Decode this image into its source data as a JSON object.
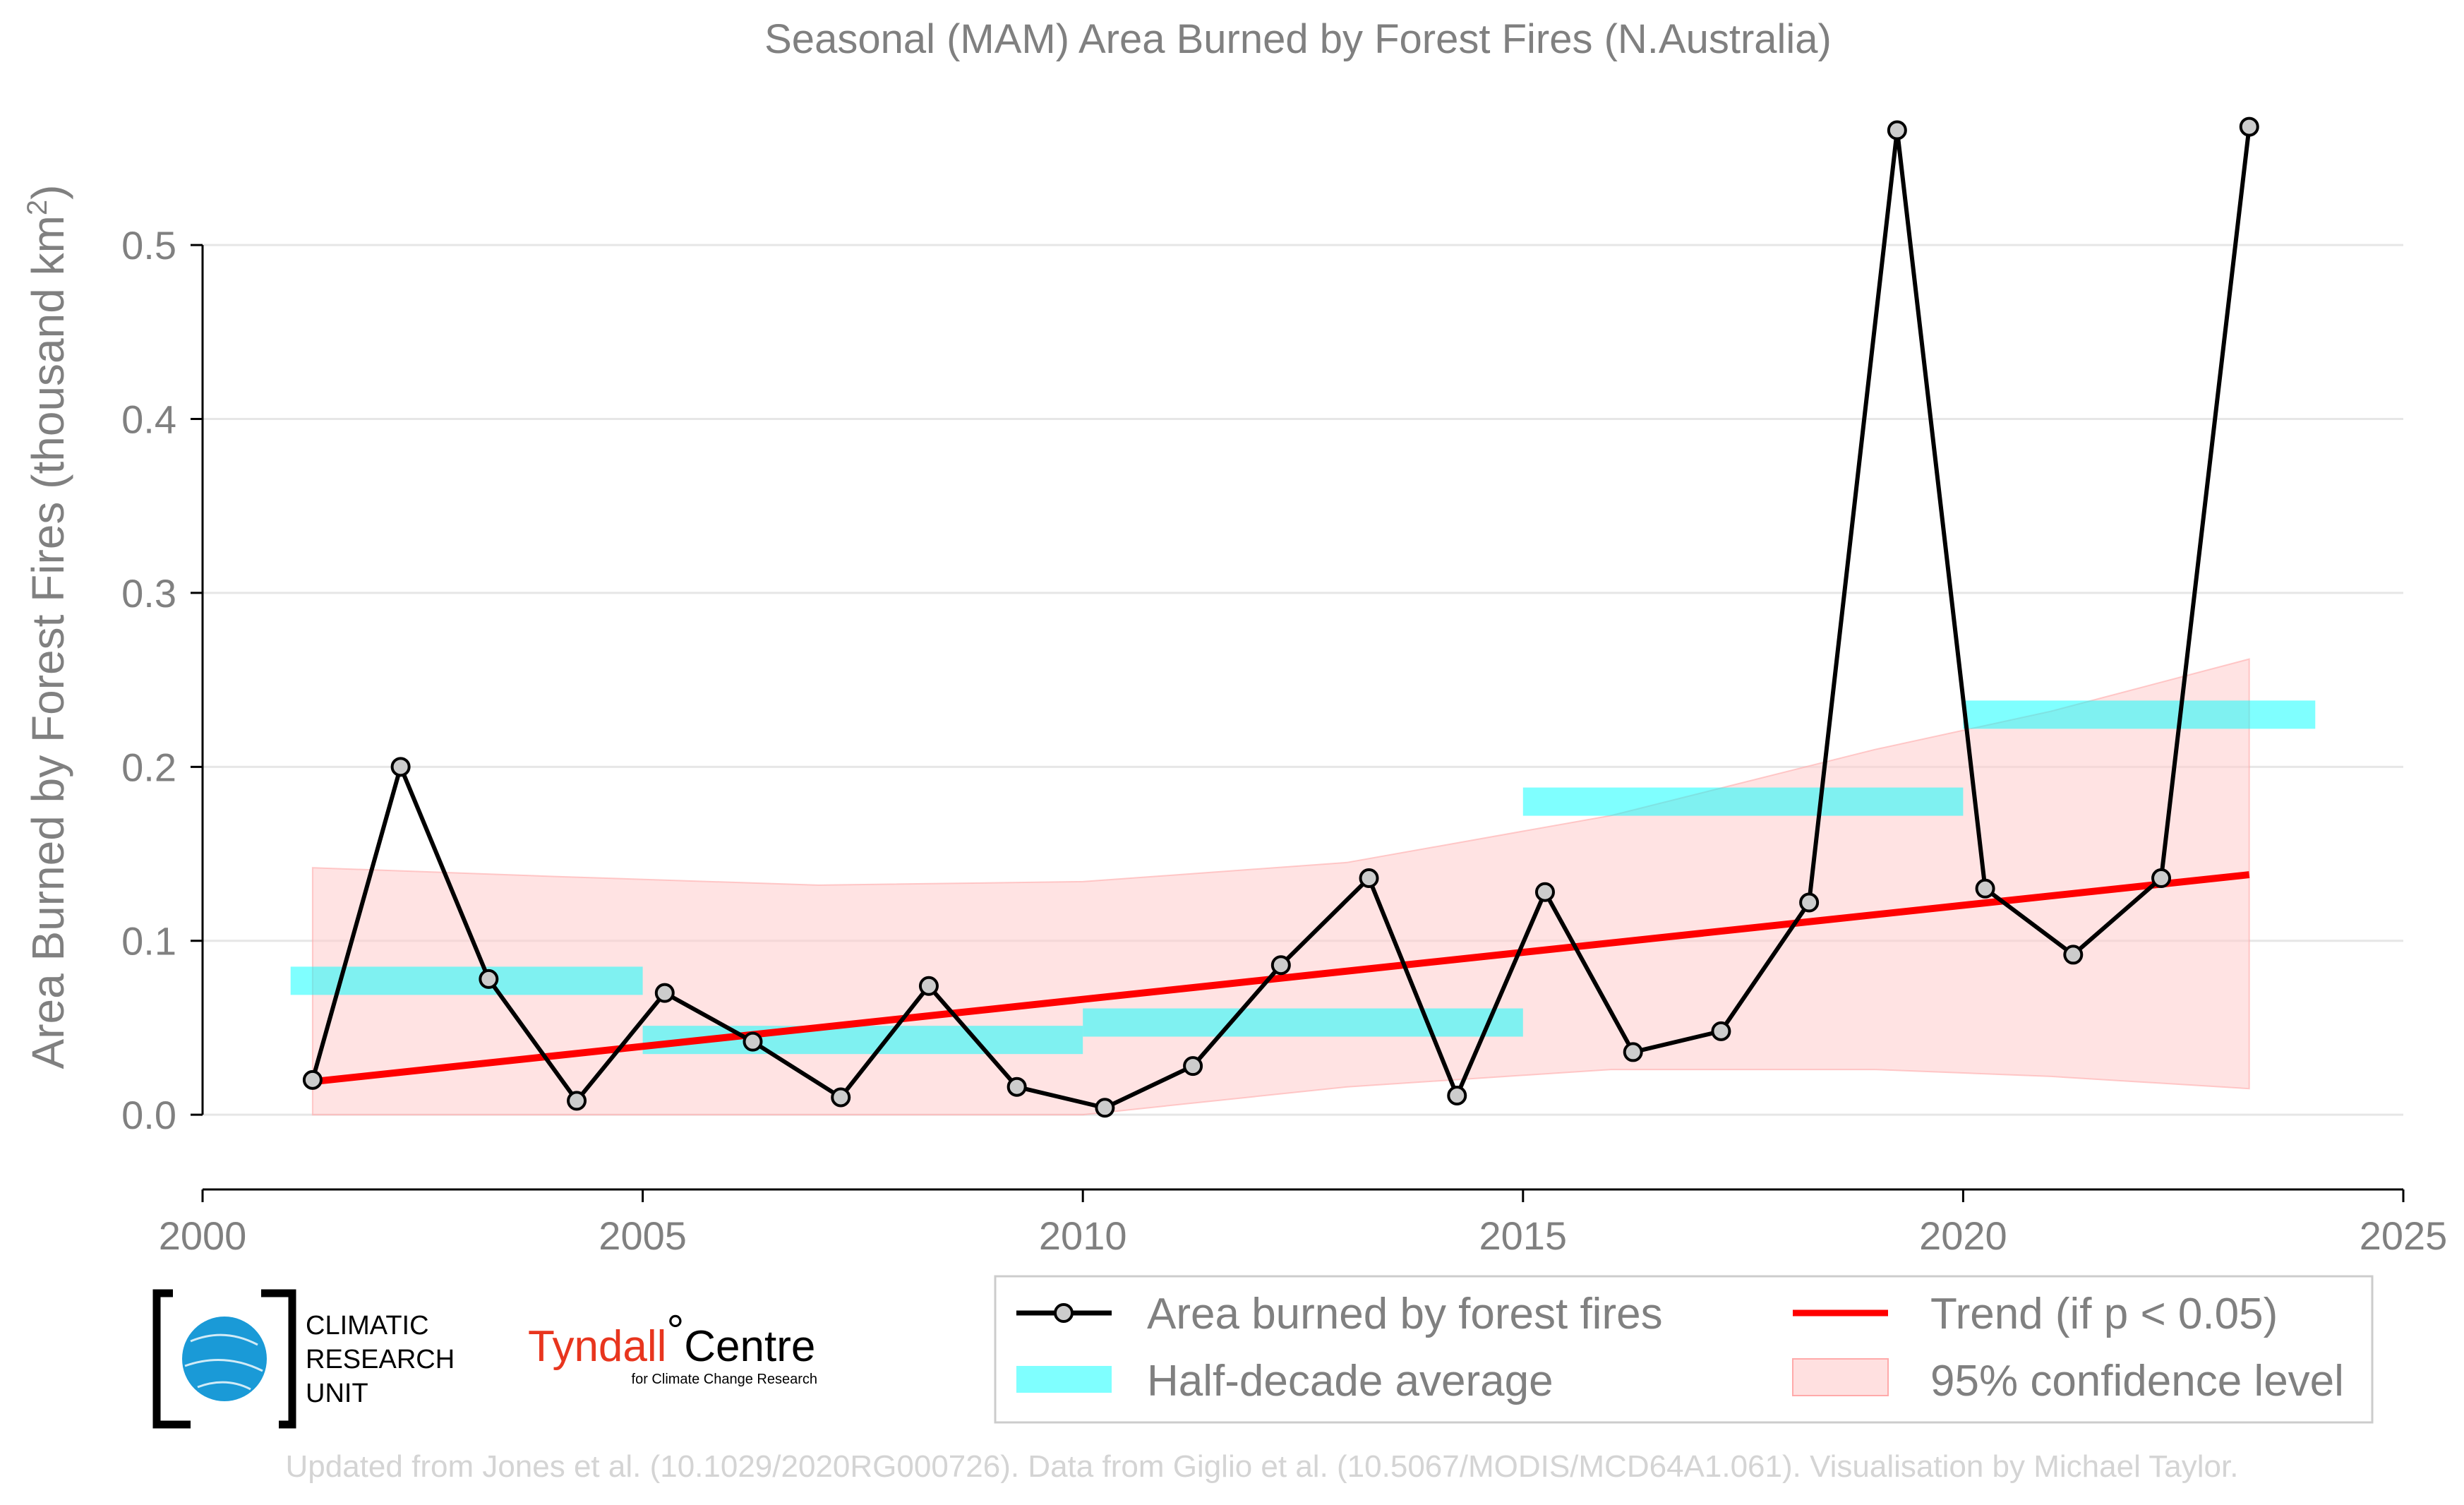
{
  "chart_data": {
    "type": "line",
    "title": "Seasonal (MAM) Area Burned by Forest Fires (N.Australia)",
    "ylabel": "Area Burned by Forest Fires (thousand km",
    "ylabel_sup": "2",
    "ylabel_end": ")",
    "xlabel": "",
    "xlim": [
      2000,
      2025
    ],
    "ylim": [
      -0.045,
      0.58
    ],
    "xticks": [
      2000,
      2005,
      2010,
      2015,
      2020,
      2025
    ],
    "yticks": [
      0.0,
      0.1,
      0.2,
      0.3,
      0.4,
      0.5
    ],
    "ytick_labels": [
      "0.0",
      "0.1",
      "0.2",
      "0.3",
      "0.4",
      "0.5"
    ],
    "grid": "horizontal",
    "legend_position": "bottom-right",
    "series": [
      {
        "name": "Area burned by forest fires",
        "kind": "line-markers",
        "color": "#000000",
        "marker_fill": "#cccccc",
        "x": [
          2001.25,
          2002.25,
          2003.25,
          2004.25,
          2005.25,
          2006.25,
          2007.25,
          2008.25,
          2009.25,
          2010.25,
          2011.25,
          2012.25,
          2013.25,
          2014.25,
          2015.25,
          2016.25,
          2017.25,
          2018.25,
          2019.25,
          2020.25,
          2021.25,
          2022.25,
          2023.25
        ],
        "y": [
          0.02,
          0.2,
          0.078,
          0.008,
          0.07,
          0.042,
          0.01,
          0.074,
          0.016,
          0.004,
          0.028,
          0.086,
          0.136,
          0.011,
          0.128,
          0.036,
          0.048,
          0.122,
          0.566,
          0.13,
          0.092,
          0.136,
          0.568
        ]
      },
      {
        "name": "Half-decade average",
        "kind": "step-bars",
        "color": "#00ffff",
        "segments": [
          {
            "x0": 2001.0,
            "x1": 2005.0,
            "y": 0.077
          },
          {
            "x0": 2005.0,
            "x1": 2010.0,
            "y": 0.043
          },
          {
            "x0": 2010.0,
            "x1": 2015.0,
            "y": 0.053
          },
          {
            "x0": 2015.0,
            "x1": 2020.0,
            "y": 0.18
          },
          {
            "x0": 2020.0,
            "x1": 2024.0,
            "y": 0.23
          }
        ]
      },
      {
        "name": "Trend (if p < 0.05)",
        "kind": "trend-line",
        "color": "#ff0000",
        "x": [
          2001.25,
          2023.25
        ],
        "y": [
          0.019,
          0.138
        ]
      },
      {
        "name": "95% confidence level",
        "kind": "band",
        "color": "#ffcccc",
        "x": [
          2001.25,
          2004,
          2007,
          2010,
          2013,
          2016,
          2019,
          2021,
          2023.25
        ],
        "upper": [
          0.142,
          0.137,
          0.132,
          0.134,
          0.145,
          0.172,
          0.21,
          0.232,
          0.262
        ],
        "lower": [
          0.0,
          0.0,
          0.0,
          0.0,
          0.016,
          0.026,
          0.026,
          0.022,
          0.015
        ]
      }
    ]
  },
  "logos": {
    "cru": [
      "CLIMATIC",
      "RESEARCH",
      "UNIT"
    ],
    "tyndall_red": "Tyndall",
    "tyndall_degree": "°",
    "tyndall_black": "Centre",
    "tyndall_sub": "for Climate Change Research"
  },
  "footer": "Updated from Jones et al. (10.1029/2020RG000726). Data from Giglio et al. (10.5067/MODIS/MCD64A1.061). Visualisation by Michael Taylor."
}
